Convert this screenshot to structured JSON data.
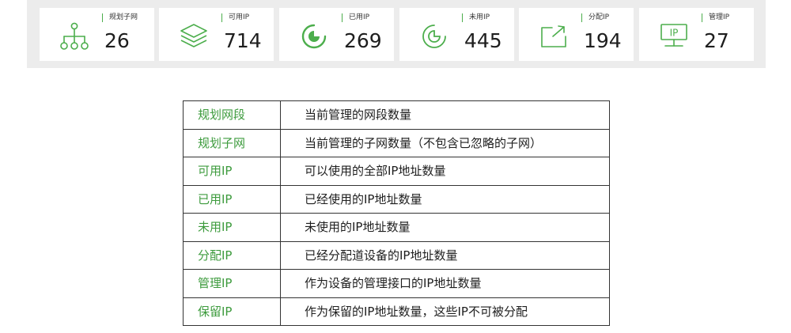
{
  "stats": [
    {
      "label": "规划子网",
      "value": "26",
      "icon": "network-tree-icon"
    },
    {
      "label": "可用IP",
      "value": "714",
      "icon": "layers-icon"
    },
    {
      "label": "已用IP",
      "value": "269",
      "icon": "pie-used-icon"
    },
    {
      "label": "未用IP",
      "value": "445",
      "icon": "pie-unused-icon"
    },
    {
      "label": "分配IP",
      "value": "194",
      "icon": "export-icon"
    },
    {
      "label": "管理IP",
      "value": "27",
      "icon": "monitor-ip-icon"
    }
  ],
  "icon_text": {
    "monitor": "IP"
  },
  "legend": [
    {
      "term": "规划网段",
      "desc": "当前管理的网段数量"
    },
    {
      "term": "规划子网",
      "desc": "当前管理的子网数量（不包含已忽略的子网）"
    },
    {
      "term": "可用IP",
      "desc": "可以使用的全部IP地址数量"
    },
    {
      "term": "已用IP",
      "desc": "已经使用的IP地址数量"
    },
    {
      "term": "未用IP",
      "desc": "未使用的IP地址数量"
    },
    {
      "term": "分配IP",
      "desc": "已经分配道设备的IP地址数量"
    },
    {
      "term": "管理IP",
      "desc": "作为设备的管理接口的IP地址数量"
    },
    {
      "term": "保留IP",
      "desc": "作为保留的IP地址数量，这些IP不可被分配"
    }
  ],
  "colors": {
    "accent": "#4cae4c",
    "term_text": "#3d9b3d",
    "bar_background": "#ececec",
    "card_background": "#ffffff",
    "border": "#333333"
  }
}
